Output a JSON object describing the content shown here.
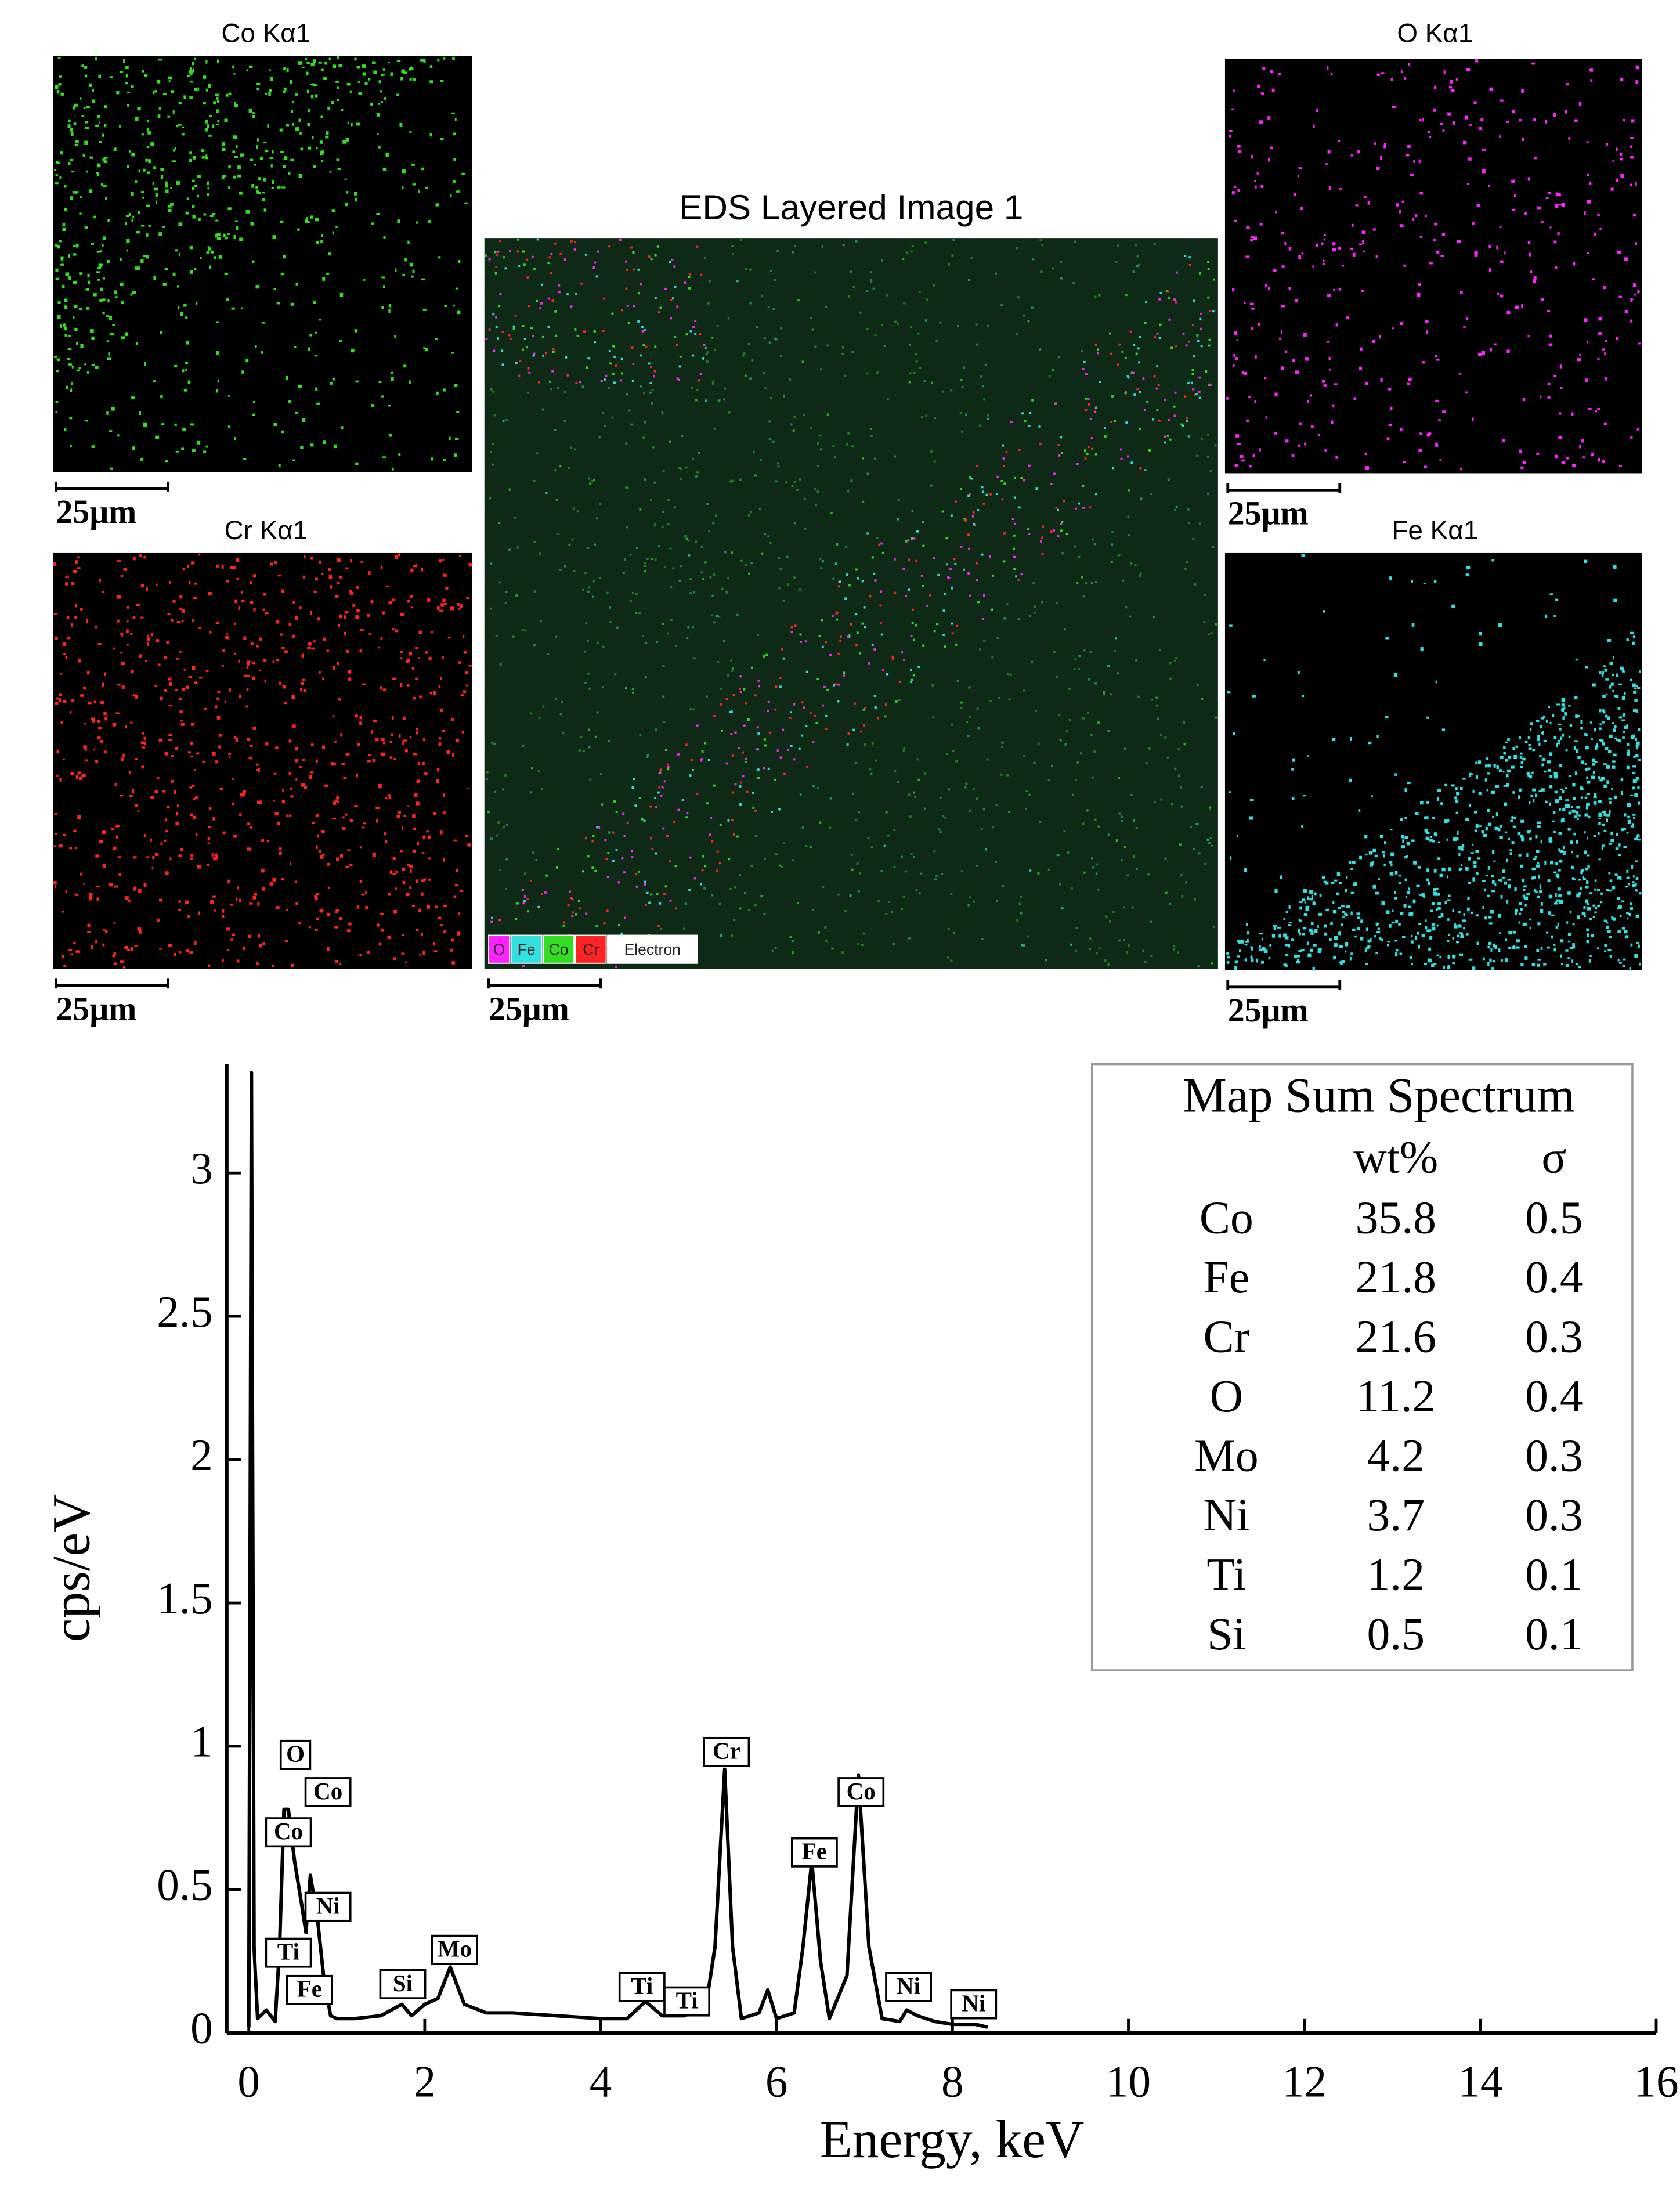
{
  "maps": [
    {
      "title": "Co Kα1",
      "color": "#33dd22",
      "scale_bar": "25μm"
    },
    {
      "title": "O Kα1",
      "color": "#ff22ff",
      "scale_bar": "25μm"
    },
    {
      "title": "Cr Kα1",
      "color": "#ff2222",
      "scale_bar": "25μm"
    },
    {
      "title": "Fe Kα1",
      "color": "#33e0e0",
      "scale_bar": "25μm"
    }
  ],
  "layered_image": {
    "title": "EDS Layered Image 1",
    "scale_bar": "25μm",
    "legend": [
      {
        "label": "O",
        "color": "#ff22ff"
      },
      {
        "label": "Fe",
        "color": "#33e0e0"
      },
      {
        "label": "Co",
        "color": "#33dd22"
      },
      {
        "label": "Cr",
        "color": "#ff2222"
      },
      {
        "label": "Electron",
        "color": "#ffffff"
      }
    ]
  },
  "chart_data": {
    "type": "line",
    "color": "#000000",
    "x_label": "Energy, keV",
    "y_label": "cps/eV",
    "x": [
      0,
      0.03,
      0.06,
      0.1,
      0.2,
      0.3,
      0.35,
      0.4,
      0.45,
      0.52,
      0.6,
      0.65,
      0.7,
      0.78,
      0.85,
      0.93,
      1.0,
      1.2,
      1.5,
      1.74,
      1.85,
      2.0,
      2.15,
      2.29,
      2.45,
      2.7,
      3.0,
      3.5,
      4.0,
      4.3,
      4.51,
      4.7,
      4.95,
      5.2,
      5.3,
      5.41,
      5.5,
      5.6,
      5.8,
      5.9,
      6.0,
      6.2,
      6.3,
      6.4,
      6.5,
      6.6,
      6.8,
      6.93,
      7.05,
      7.2,
      7.4,
      7.48,
      7.6,
      7.8,
      8.0,
      8.26,
      8.4
    ],
    "values": [
      0.02,
      3.35,
      0.3,
      0.05,
      0.08,
      0.04,
      0.3,
      0.78,
      0.78,
      0.6,
      0.45,
      0.35,
      0.55,
      0.4,
      0.2,
      0.06,
      0.05,
      0.05,
      0.06,
      0.1,
      0.06,
      0.1,
      0.12,
      0.23,
      0.1,
      0.07,
      0.07,
      0.06,
      0.05,
      0.05,
      0.11,
      0.06,
      0.06,
      0.1,
      0.3,
      0.92,
      0.3,
      0.05,
      0.07,
      0.15,
      0.05,
      0.07,
      0.3,
      0.6,
      0.25,
      0.05,
      0.2,
      0.9,
      0.3,
      0.05,
      0.04,
      0.08,
      0.06,
      0.04,
      0.03,
      0.03,
      0.02
    ],
    "xlim": [
      -0.25,
      16
    ],
    "xticks": [
      0,
      2,
      4,
      6,
      8,
      10,
      12,
      14,
      16
    ],
    "ylim": [
      0,
      3.38
    ],
    "yticks": [
      0,
      0.5,
      1,
      1.5,
      2,
      2.5,
      3
    ],
    "annotations": [
      {
        "text": "O",
        "x": 0.53,
        "y": 0.97
      },
      {
        "text": "Co",
        "x": 0.9,
        "y": 0.84
      },
      {
        "text": "Co",
        "x": 0.45,
        "y": 0.7
      },
      {
        "text": "Ni",
        "x": 0.9,
        "y": 0.44
      },
      {
        "text": "Ti",
        "x": 0.45,
        "y": 0.28
      },
      {
        "text": "Fe",
        "x": 0.69,
        "y": 0.15
      },
      {
        "text": "Si",
        "x": 1.75,
        "y": 0.17
      },
      {
        "text": "Mo",
        "x": 2.34,
        "y": 0.29
      },
      {
        "text": "Ti",
        "x": 4.47,
        "y": 0.16
      },
      {
        "text": "Ti",
        "x": 4.98,
        "y": 0.11
      },
      {
        "text": "Cr",
        "x": 5.43,
        "y": 0.98
      },
      {
        "text": "Fe",
        "x": 6.43,
        "y": 0.63
      },
      {
        "text": "Co",
        "x": 6.96,
        "y": 0.84
      },
      {
        "text": "Ni",
        "x": 7.5,
        "y": 0.16
      },
      {
        "text": "Ni",
        "x": 8.24,
        "y": 0.1
      }
    ],
    "table": {
      "title": "Map Sum Spectrum",
      "columns": [
        "wt%",
        "σ"
      ],
      "rows": [
        [
          "Co",
          35.8,
          0.5
        ],
        [
          "Fe",
          21.8,
          0.4
        ],
        [
          "Cr",
          21.6,
          0.3
        ],
        [
          "O",
          11.2,
          0.4
        ],
        [
          "Mo",
          4.2,
          0.3
        ],
        [
          "Ni",
          3.7,
          0.3
        ],
        [
          "Ti",
          1.2,
          0.1
        ],
        [
          "Si",
          0.5,
          0.1
        ]
      ]
    }
  }
}
